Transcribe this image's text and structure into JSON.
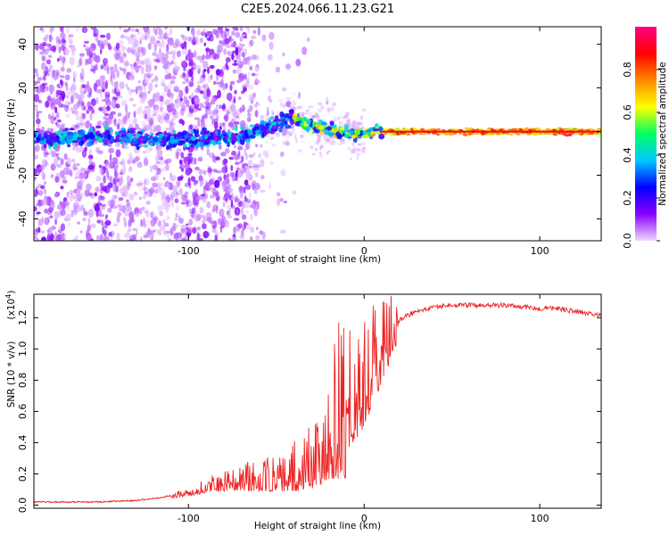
{
  "chart_data": [
    {
      "type": "heatmap",
      "title": "C2E5.2024.066.11.23.G21",
      "xlabel": "Height of straight line (km)",
      "ylabel": "Frequency (Hz)",
      "xlim": [
        -188,
        135
      ],
      "ylim": [
        -50,
        48
      ],
      "x_ticks": [
        -100,
        0,
        100
      ],
      "x_tick_labels": [
        "-100",
        "0",
        "100"
      ],
      "y_ticks": [
        -40,
        -20,
        0,
        20,
        40
      ],
      "y_tick_labels": [
        "-40",
        "-20",
        "0",
        "20",
        "40"
      ],
      "colorbar": {
        "label": "Normalized spectral amplitude",
        "range": [
          0,
          1
        ],
        "ticks": [
          0,
          0.2,
          0.4,
          0.6,
          0.8
        ],
        "tick_labels": [
          "0.0",
          "0.2",
          "0.4",
          "0.6",
          "0.8"
        ],
        "colors": [
          "#f0d8ff",
          "#8800ff",
          "#0000ff",
          "#00c8ff",
          "#00ff60",
          "#ffff00",
          "#ff8800",
          "#ff0000",
          "#ff0080"
        ]
      },
      "ridge": {
        "x": [
          -185,
          -170,
          -150,
          -130,
          -110,
          -90,
          -70,
          -60,
          -50,
          -40,
          -35,
          -25,
          -15,
          -5,
          5,
          20,
          60,
          100,
          135
        ],
        "y": [
          -3,
          -3,
          -2,
          -3,
          -4,
          -3,
          -2,
          0,
          3,
          7,
          4,
          2,
          0,
          -1,
          0,
          0,
          0,
          0,
          0
        ]
      }
    },
    {
      "type": "line",
      "xlabel": "Height of straight line (km)",
      "ylabel": "SNR (10 * v/v)",
      "y_multiplier": "(x10",
      "y_exponent": "4",
      "y_multiplier_close": ")",
      "xlim": [
        -188,
        135
      ],
      "ylim": [
        -0.02,
        1.35
      ],
      "x_ticks": [
        -100,
        0,
        100
      ],
      "x_tick_labels": [
        "-100",
        "0",
        "100"
      ],
      "y_ticks": [
        0,
        0.2,
        0.4,
        0.6,
        0.8,
        1.0,
        1.2
      ],
      "y_tick_labels": [
        "0.0",
        "0.2",
        "0.4",
        "0.6",
        "0.8",
        "1.0",
        "1.2"
      ],
      "line_color": "#ee2222",
      "series": [
        {
          "name": "SNR",
          "x": [
            -188,
            -170,
            -150,
            -130,
            -115,
            -100,
            -90,
            -80,
            -70,
            -60,
            -50,
            -40,
            -30,
            -25,
            -20,
            -15,
            -10,
            -5,
            0,
            5,
            10,
            15,
            20,
            25,
            30,
            40,
            50,
            60,
            70,
            80,
            90,
            100,
            110,
            120,
            135
          ],
          "y": [
            0.02,
            0.02,
            0.02,
            0.03,
            0.05,
            0.08,
            0.12,
            0.15,
            0.17,
            0.18,
            0.19,
            0.22,
            0.3,
            0.4,
            0.55,
            0.62,
            0.68,
            0.72,
            0.8,
            0.92,
            1.02,
            1.12,
            1.18,
            1.22,
            1.24,
            1.27,
            1.28,
            1.28,
            1.28,
            1.28,
            1.27,
            1.26,
            1.26,
            1.24,
            1.22
          ]
        }
      ]
    }
  ]
}
